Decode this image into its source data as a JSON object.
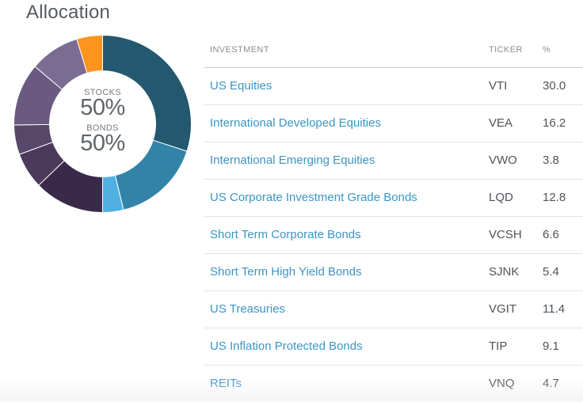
{
  "title": "Allocation",
  "donut": {
    "stocks_label": "STOCKS",
    "stocks_value": "50%",
    "bonds_label": "BONDS",
    "bonds_value": "50%",
    "segments": [
      {
        "name": "US Equities",
        "value": 30.0,
        "color": "#23586f"
      },
      {
        "name": "International Developed Equities",
        "value": 16.2,
        "color": "#3383a9"
      },
      {
        "name": "International Emerging Equities",
        "value": 3.8,
        "color": "#4fb1e3"
      },
      {
        "name": "US Corporate Investment Grade Bonds",
        "value": 12.8,
        "color": "#3a2a4a"
      },
      {
        "name": "Short Term Corporate Bonds",
        "value": 6.6,
        "color": "#4b3a5c"
      },
      {
        "name": "Short Term High Yield Bonds",
        "value": 5.4,
        "color": "#574769"
      },
      {
        "name": "US Treasuries",
        "value": 11.4,
        "color": "#6a5a80"
      },
      {
        "name": "US Inflation Protected Bonds",
        "value": 9.1,
        "color": "#7b6c92"
      },
      {
        "name": "REITs",
        "value": 4.7,
        "color": "#fb951f"
      }
    ]
  },
  "table": {
    "headers": {
      "investment": "INVESTMENT",
      "ticker": "TICKER",
      "pct": "%"
    },
    "rows": [
      {
        "name": "US Equities",
        "ticker": "VTI",
        "pct": "30.0"
      },
      {
        "name": "International Developed Equities",
        "ticker": "VEA",
        "pct": "16.2"
      },
      {
        "name": "International Emerging Equities",
        "ticker": "VWO",
        "pct": "3.8"
      },
      {
        "name": "US Corporate Investment Grade Bonds",
        "ticker": "LQD",
        "pct": "12.8"
      },
      {
        "name": "Short Term Corporate Bonds",
        "ticker": "VCSH",
        "pct": "6.6"
      },
      {
        "name": "Short Term High Yield Bonds",
        "ticker": "SJNK",
        "pct": "5.4"
      },
      {
        "name": "US Treasuries",
        "ticker": "VGIT",
        "pct": "11.4"
      },
      {
        "name": "US Inflation Protected Bonds",
        "ticker": "TIP",
        "pct": "9.1"
      },
      {
        "name": "REITs",
        "ticker": "VNQ",
        "pct": "4.7"
      }
    ]
  }
}
